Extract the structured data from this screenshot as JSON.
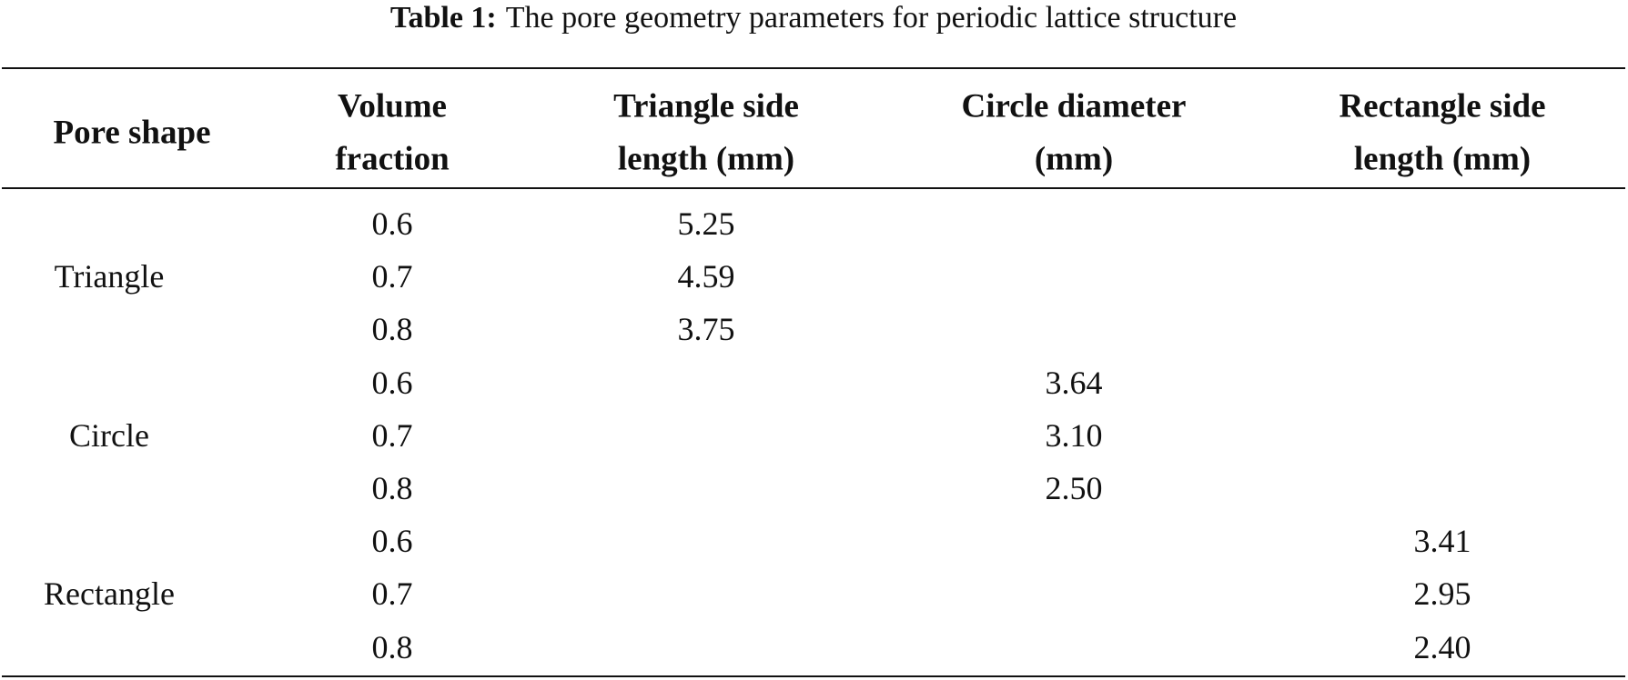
{
  "caption": {
    "label": "Table 1:",
    "text": "The pore geometry parameters for periodic lattice structure"
  },
  "table": {
    "headers": [
      [
        "Pore shape"
      ],
      [
        "Volume",
        "fraction"
      ],
      [
        "Triangle side",
        "length (mm)"
      ],
      [
        "Circle diameter",
        "(mm)"
      ],
      [
        "Rectangle side",
        "length (mm)"
      ]
    ],
    "groups": [
      {
        "shape": "Triangle",
        "rows": [
          [
            "0.6",
            "5.25"
          ],
          [
            "0.7",
            "4.59"
          ],
          [
            "0.8",
            "3.75"
          ]
        ]
      },
      {
        "shape": "Circle",
        "rows": [
          [
            "0.6",
            "3.64"
          ],
          [
            "0.7",
            "3.10"
          ],
          [
            "0.8",
            "2.50"
          ]
        ]
      },
      {
        "shape": "Rectangle",
        "rows": [
          [
            "0.6",
            "3.41"
          ],
          [
            "0.7",
            "2.95"
          ],
          [
            "0.8",
            "2.40"
          ]
        ]
      }
    ]
  }
}
